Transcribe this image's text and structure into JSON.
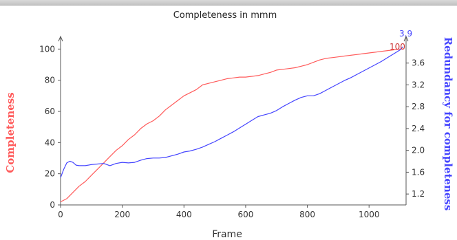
{
  "chart_data": {
    "type": "line",
    "title": "Completeness in mmm",
    "xlabel": "Frame",
    "ylabel_left": "Completeness",
    "ylabel_right": "Redundancy for completeness",
    "xlim": [
      0,
      1120
    ],
    "ylim_left": [
      0,
      105
    ],
    "ylim_right": [
      1.0,
      4.0
    ],
    "xticks": [
      0,
      200,
      400,
      600,
      800,
      1000
    ],
    "yticks_left": [
      0,
      20,
      40,
      60,
      80,
      100
    ],
    "yticks_right": [
      1.2,
      1.6,
      2.0,
      2.4,
      2.8,
      3.2,
      3.6
    ],
    "grid": false,
    "colors": {
      "completeness": "#ff5a5a",
      "redundancy": "#4444ff"
    },
    "end_labels": {
      "completeness": "100",
      "redundancy": "3.9"
    },
    "series": [
      {
        "axis": "left",
        "color": "#ff5a5a",
        "x": [
          0,
          20,
          40,
          60,
          80,
          100,
          120,
          140,
          160,
          180,
          200,
          220,
          240,
          260,
          280,
          300,
          320,
          340,
          360,
          380,
          400,
          420,
          440,
          460,
          480,
          500,
          520,
          540,
          560,
          580,
          600,
          620,
          640,
          660,
          680,
          700,
          720,
          740,
          760,
          780,
          800,
          820,
          840,
          860,
          880,
          900,
          920,
          940,
          960,
          980,
          1000,
          1020,
          1040,
          1060,
          1080,
          1100,
          1110
        ],
        "values": [
          2,
          4,
          8,
          12,
          15,
          19,
          23,
          27,
          31,
          35,
          38,
          42,
          45,
          49,
          52,
          54,
          57,
          61,
          64,
          67,
          70,
          72,
          74,
          77,
          78,
          79,
          80,
          81,
          81.5,
          82,
          82,
          82.5,
          83,
          84,
          85,
          86.5,
          87,
          87.5,
          88,
          89,
          90,
          91.5,
          93,
          94,
          94.5,
          95,
          95.5,
          96,
          96.5,
          97,
          97.5,
          98,
          98.5,
          99,
          99.5,
          100,
          100
        ]
      },
      {
        "axis": "right",
        "color": "#4444ff",
        "x": [
          0,
          10,
          20,
          30,
          40,
          50,
          60,
          80,
          100,
          120,
          140,
          160,
          180,
          200,
          220,
          240,
          260,
          280,
          300,
          320,
          340,
          360,
          380,
          400,
          420,
          440,
          460,
          480,
          500,
          520,
          540,
          560,
          580,
          600,
          620,
          640,
          660,
          680,
          700,
          720,
          740,
          760,
          780,
          800,
          820,
          840,
          860,
          880,
          900,
          920,
          940,
          960,
          980,
          1000,
          1020,
          1040,
          1060,
          1080,
          1100,
          1110
        ],
        "values": [
          1.5,
          1.65,
          1.77,
          1.8,
          1.78,
          1.73,
          1.72,
          1.72,
          1.74,
          1.75,
          1.76,
          1.72,
          1.76,
          1.78,
          1.77,
          1.78,
          1.82,
          1.85,
          1.86,
          1.86,
          1.87,
          1.9,
          1.93,
          1.97,
          1.99,
          2.02,
          2.06,
          2.11,
          2.16,
          2.22,
          2.28,
          2.34,
          2.41,
          2.48,
          2.55,
          2.62,
          2.65,
          2.68,
          2.73,
          2.8,
          2.86,
          2.92,
          2.97,
          3.0,
          3.0,
          3.04,
          3.1,
          3.16,
          3.22,
          3.28,
          3.33,
          3.39,
          3.45,
          3.51,
          3.57,
          3.63,
          3.7,
          3.77,
          3.84,
          3.9
        ]
      }
    ]
  }
}
